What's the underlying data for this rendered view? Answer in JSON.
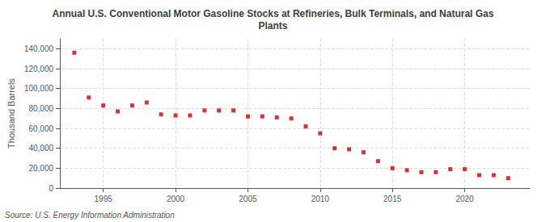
{
  "chart_data": {
    "type": "scatter",
    "title": "Annual U.S. Conventional Motor Gasoline Stocks at Refineries, Bulk Terminals, and Natural Gas\nPlants",
    "ylabel": "Thousand Barrels",
    "annotation": "Source: U.S. Energy Information Administration",
    "x": [
      1993,
      1994,
      1995,
      1996,
      1997,
      1998,
      1999,
      2000,
      2001,
      2002,
      2003,
      2004,
      2005,
      2006,
      2007,
      2008,
      2009,
      2010,
      2011,
      2012,
      2013,
      2014,
      2015,
      2016,
      2017,
      2018,
      2019,
      2020,
      2021,
      2022,
      2023
    ],
    "values": [
      136000,
      91000,
      83000,
      77000,
      83000,
      86000,
      74000,
      73000,
      73000,
      78000,
      78000,
      78000,
      72000,
      72000,
      71000,
      70000,
      62000,
      55000,
      40000,
      39000,
      36000,
      27000,
      20000,
      18000,
      16000,
      16000,
      19000,
      19000,
      13000,
      13000,
      10000
    ],
    "color": "#cc0000",
    "marker": "square",
    "xlim": [
      1992,
      2024.5
    ],
    "xticks": [
      1995,
      2000,
      2005,
      2010,
      2015,
      2020
    ],
    "ylim": [
      0,
      150000
    ],
    "yticks": [
      0,
      {
        "value": 20000,
        "label": "20,000"
      },
      {
        "value": 40000,
        "label": "40,000"
      },
      {
        "value": 60000,
        "label": "60,000"
      },
      {
        "value": 80000,
        "label": "80,000"
      },
      {
        "value": 100000,
        "label": "100,000"
      },
      {
        "value": 120000,
        "label": "120,000"
      },
      {
        "value": 140000,
        "label": "140,000"
      }
    ],
    "grid": true
  }
}
